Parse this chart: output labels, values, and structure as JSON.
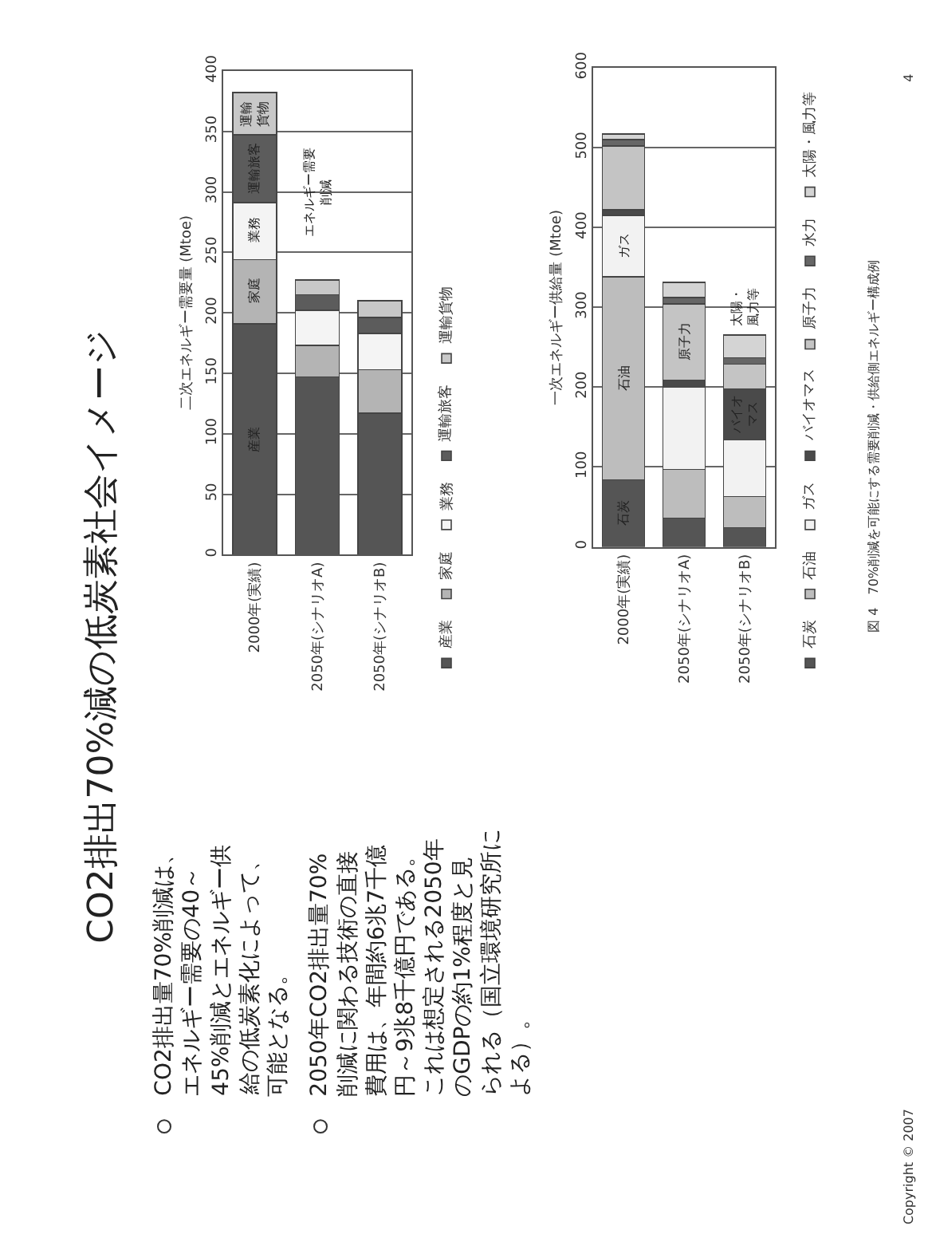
{
  "chart_data": [
    {
      "type": "other",
      "title": "CO2排出70%減の低炭素社会イメージ",
      "annotations": [
        "CO2排出量70%削減は、エネルギー需要の40～45%削減とエネルギー供給の低炭素化によって、可能となる。",
        "2050年CO2排出量70%削減に関わる技術の直接費用は、年間約6兆7千億円～9兆8千億円である。これは想定される2050年のGDPの約1%程度と見られる（国立環境研究所による）。"
      ]
    },
    {
      "type": "bar",
      "stacked": true,
      "ylabel": "二次エネルギー需要量 (Mtoe)",
      "categories": [
        "2000年(実績)",
        "2050年(シナリオA)",
        "2050年(シナリオB)"
      ],
      "series": [
        {
          "name": "産業",
          "color": "#555555",
          "values": [
            191,
            147,
            117
          ]
        },
        {
          "name": "家庭",
          "color": "#b4b4b4",
          "values": [
            53,
            26,
            36
          ]
        },
        {
          "name": "業務",
          "color": "#f4f4f4",
          "values": [
            47,
            29,
            30
          ]
        },
        {
          "name": "運輸旅客",
          "color": "#5c5c5c",
          "values": [
            56,
            13,
            13
          ]
        },
        {
          "name": "運輸貨物",
          "color": "#c8c8c8",
          "values": [
            35,
            12,
            14
          ]
        }
      ],
      "ylim": [
        0,
        400
      ],
      "yticks": [
        0,
        50,
        100,
        150,
        200,
        250,
        300,
        350,
        400
      ],
      "grid": "y",
      "legend": "right",
      "annotations": [
        "産業",
        "家庭",
        "業務",
        "運輸旅客",
        "運輸貨物",
        "エネルギー需要削減"
      ]
    },
    {
      "type": "bar",
      "stacked": true,
      "ylabel": "一次エネルギー供給量 (Mtoe)",
      "categories": [
        "2000年(実績)",
        "2050年(シナリオA)",
        "2050年(シナリオB)"
      ],
      "series": [
        {
          "name": "石炭",
          "color": "#555555",
          "values": [
            84,
            36,
            24
          ]
        },
        {
          "name": "石油",
          "color": "#bdbdbd",
          "values": [
            254,
            61,
            39
          ]
        },
        {
          "name": "ガス",
          "color": "#f2f2f2",
          "values": [
            77,
            103,
            71
          ]
        },
        {
          "name": "バイオマス",
          "color": "#4a4a4a",
          "values": [
            7,
            9,
            64
          ]
        },
        {
          "name": "原子力",
          "color": "#c4c4c4",
          "values": [
            80,
            95,
            31
          ]
        },
        {
          "name": "水力",
          "color": "#666666",
          "values": [
            8,
            8,
            8
          ]
        },
        {
          "name": "太陽・風力等",
          "color": "#d4d4d4",
          "values": [
            7,
            19,
            28
          ]
        }
      ],
      "ylim": [
        0,
        600
      ],
      "yticks": [
        0,
        100,
        200,
        300,
        400,
        500,
        600
      ],
      "grid": "y",
      "legend": "right",
      "annotations": [
        "石炭",
        "石油",
        "ガス",
        "原子力",
        "バイオマス",
        "太陽・風力等",
        "図 4　70%削減を可能にする需要削減・供給側エネルギー構成例",
        "4",
        "Copyright © 2007"
      ]
    }
  ]
}
